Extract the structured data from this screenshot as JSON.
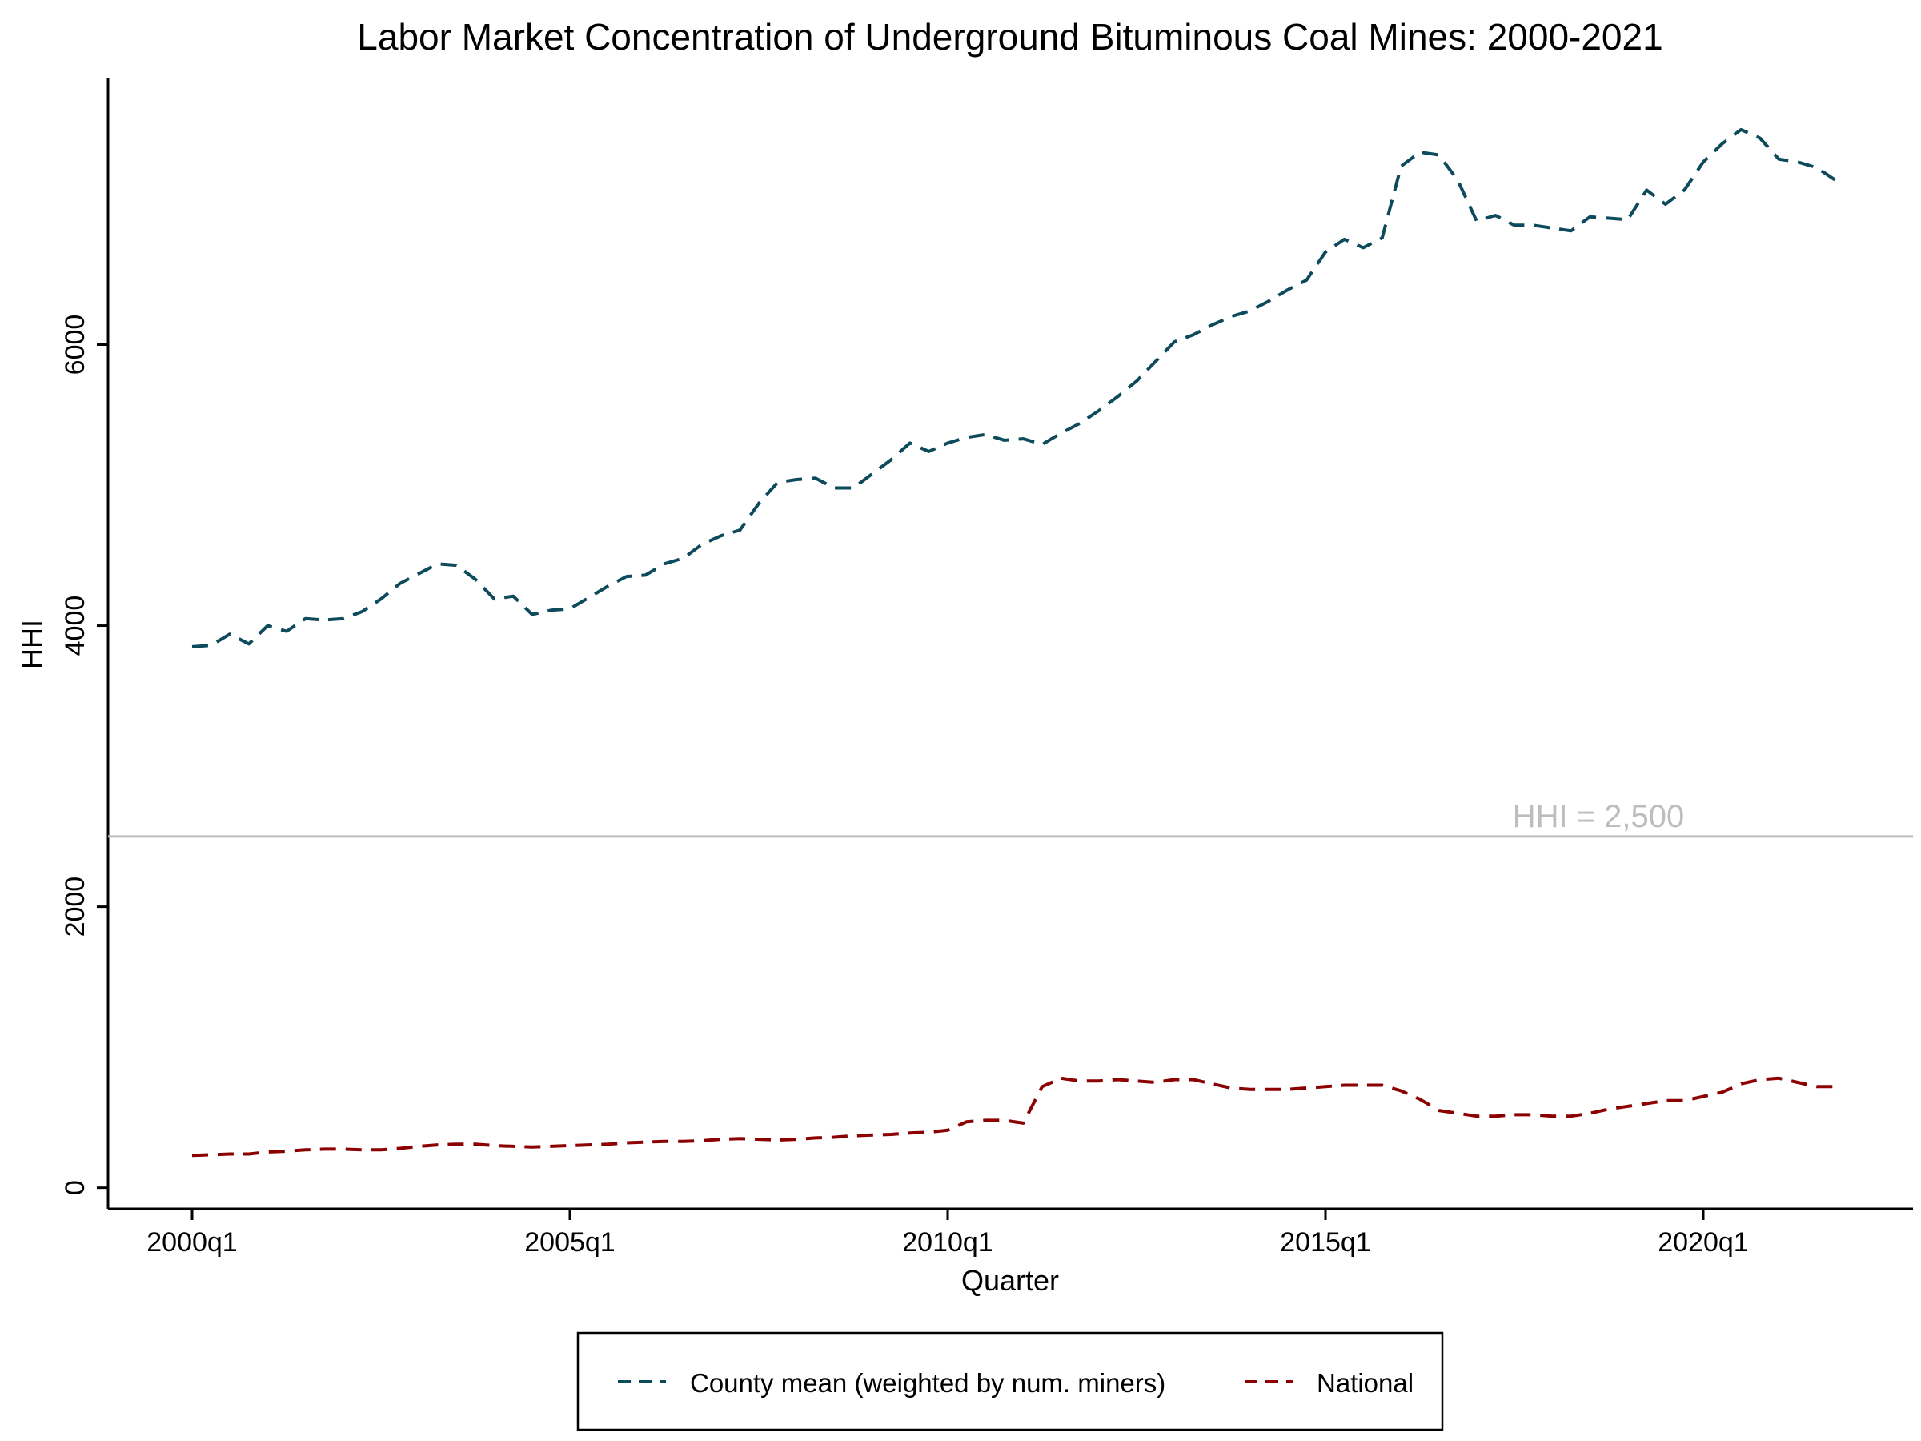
{
  "chart_data": {
    "type": "line",
    "title": "Labor Market Concentration of Underground Bituminous Coal Mines: 2000-2021",
    "xlabel": "Quarter",
    "ylabel": "HHI",
    "x_range": [
      "2000q1",
      "2021q4"
    ],
    "ylim": [
      -150,
      7900
    ],
    "x_ticks": [
      "2000q1",
      "2005q1",
      "2010q1",
      "2015q1",
      "2020q1"
    ],
    "y_ticks": [
      0,
      2000,
      4000,
      6000
    ],
    "grid": false,
    "legend_position": "bottom",
    "reference_line": {
      "value": 2500,
      "label": "HHI = 2,500",
      "color": "#bdbdbd"
    },
    "series": [
      {
        "name": "County mean (weighted by num. miners)",
        "color": "#0d4a5c",
        "dash": "dashed",
        "values": [
          3850,
          3860,
          3940,
          3870,
          4000,
          3960,
          4050,
          4040,
          4050,
          4100,
          4190,
          4300,
          4370,
          4440,
          4430,
          4330,
          4190,
          4210,
          4080,
          4110,
          4120,
          4200,
          4280,
          4350,
          4360,
          4440,
          4480,
          4580,
          4640,
          4680,
          4870,
          5020,
          5040,
          5050,
          4980,
          4980,
          5080,
          5180,
          5300,
          5240,
          5300,
          5340,
          5360,
          5320,
          5330,
          5290,
          5370,
          5440,
          5530,
          5630,
          5740,
          5880,
          6020,
          6070,
          6140,
          6200,
          6240,
          6310,
          6390,
          6460,
          6660,
          6750,
          6690,
          6760,
          7270,
          7370,
          7350,
          7170,
          6880,
          6920,
          6850,
          6850,
          6830,
          6810,
          6910,
          6900,
          6890,
          7100,
          7000,
          7100,
          7300,
          7430,
          7530,
          7470,
          7320,
          7300,
          7260,
          7170
        ]
      },
      {
        "name": "National",
        "color": "#8b0000",
        "dash": "dashed",
        "values": [
          230,
          235,
          240,
          240,
          255,
          260,
          270,
          275,
          275,
          270,
          270,
          280,
          295,
          305,
          310,
          310,
          300,
          295,
          290,
          295,
          300,
          305,
          310,
          320,
          325,
          330,
          330,
          335,
          345,
          350,
          345,
          340,
          345,
          355,
          360,
          370,
          375,
          380,
          390,
          395,
          410,
          470,
          480,
          480,
          460,
          720,
          780,
          760,
          760,
          770,
          760,
          750,
          770,
          770,
          740,
          710,
          700,
          700,
          700,
          710,
          720,
          730,
          730,
          730,
          690,
          630,
          550,
          530,
          510,
          510,
          520,
          520,
          510,
          510,
          530,
          560,
          580,
          600,
          620,
          620,
          650,
          680,
          740,
          770,
          780,
          750,
          720,
          720
        ]
      }
    ]
  }
}
